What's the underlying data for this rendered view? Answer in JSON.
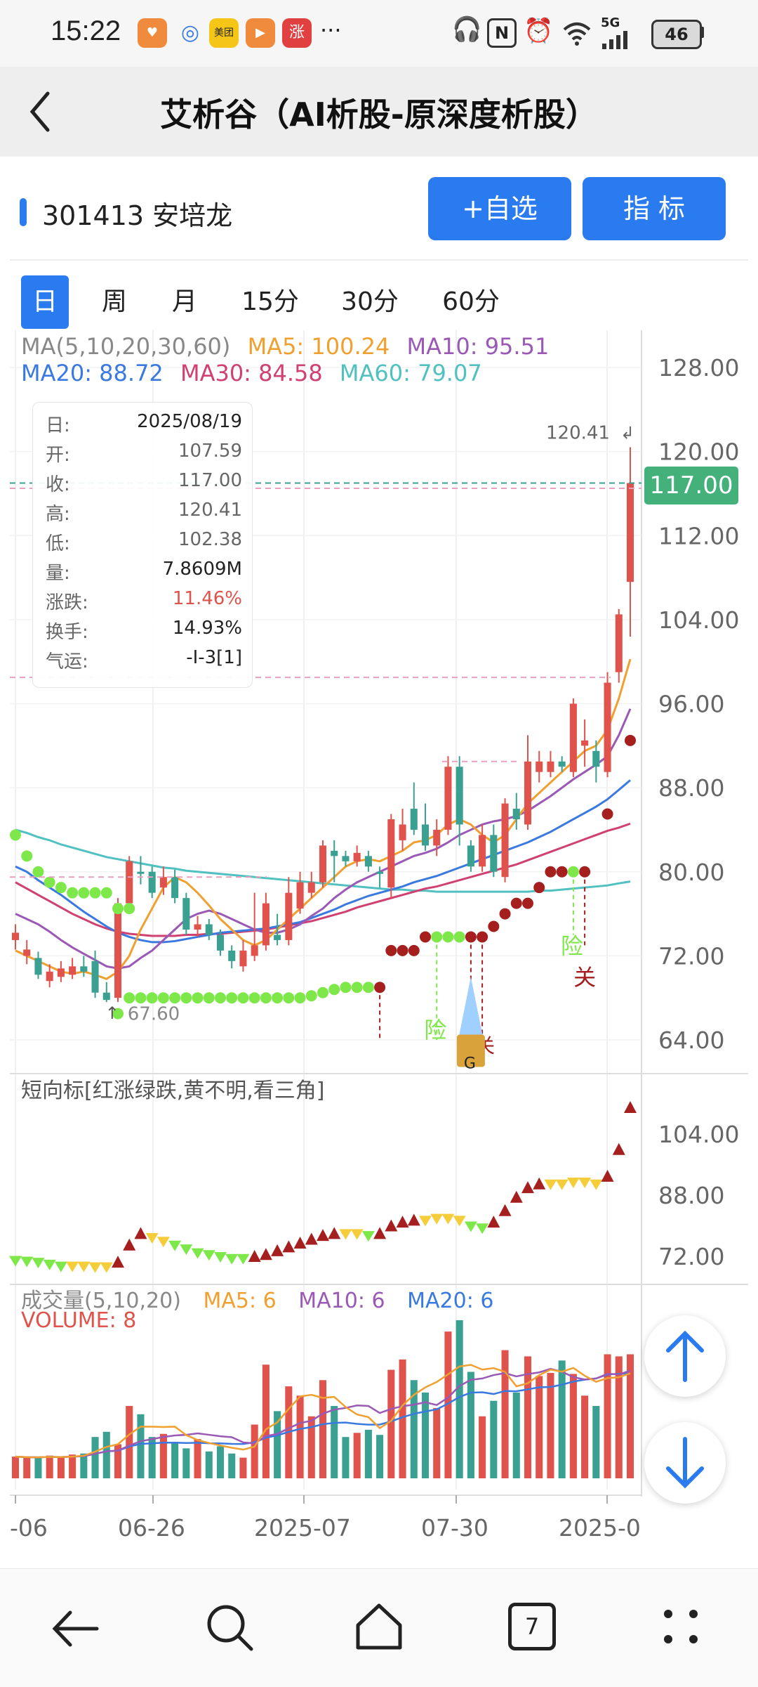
{
  "status_bar": {
    "time": "15:22",
    "dots": "···",
    "battery": "46",
    "network": "5G"
  },
  "header": {
    "title": "艾析谷（AI析股-原深度析股）"
  },
  "stock": {
    "code_name": "301413 安培龙",
    "add_label": "+自选",
    "indicator_label": "指  标"
  },
  "tabs": [
    {
      "label": "日",
      "active": true
    },
    {
      "label": "周",
      "active": false
    },
    {
      "label": "月",
      "active": false
    },
    {
      "label": "15分",
      "active": false
    },
    {
      "label": "30分",
      "active": false
    },
    {
      "label": "60分",
      "active": false
    }
  ],
  "ma_legend": {
    "title": "MA(5,10,20,30,60)",
    "ma5": "MA5: 100.24",
    "ma10": "MA10: 95.51",
    "ma20": "MA20: 88.72",
    "ma30": "MA30: 84.58",
    "ma60": "MA60: 79.07"
  },
  "tooltip": [
    {
      "label": "日:",
      "value": "2025/08/19"
    },
    {
      "label": "开:",
      "value": "107.59"
    },
    {
      "label": "收:",
      "value": "117.00"
    },
    {
      "label": "高:",
      "value": "120.41"
    },
    {
      "label": "低:",
      "value": "102.38"
    },
    {
      "label": "量:",
      "value": "7.8609M"
    },
    {
      "label": "涨跌:",
      "value": "11.46%"
    },
    {
      "label": "换手:",
      "value": "14.93%"
    },
    {
      "label": "气运:",
      "value": "-I-3[1]"
    }
  ],
  "price_axis": [
    "128.00",
    "120.00",
    "112.00",
    "104.00",
    "96.00",
    "88.00",
    "80.00",
    "72.00",
    "64.00"
  ],
  "current_price": "117.00",
  "high_marker": "120.41",
  "low_marker": "67.60",
  "signals": {
    "risk": "险",
    "close": "关",
    "g": "G"
  },
  "short_indicator": {
    "title": "短向标[红涨绿跌,黄不明,看三角]",
    "axis": [
      "104.00",
      "88.00",
      "72.00"
    ]
  },
  "volume": {
    "title": "成交量(5,10,20)",
    "ma5": "MA5: 6",
    "ma10": "MA10: 6",
    "ma20": "MA20: 6",
    "volume_label": "VOLUME: 8"
  },
  "x_axis": [
    "-06",
    "06-26",
    "2025-07",
    "07-30",
    "2025-0"
  ],
  "nav": {
    "tabs_count": "7"
  },
  "colors": {
    "up": "#e0534d",
    "down": "#3aa192",
    "accent": "#2a7af0",
    "ma5": "#f0a030",
    "ma10": "#9b59b6",
    "ma20": "#3a7ae0",
    "ma30": "#d04070",
    "ma60": "#50c0c0"
  },
  "chart_data": {
    "type": "candlestick",
    "y_range": [
      62,
      130
    ],
    "candles": [
      [
        73.5,
        74.2,
        72.6,
        75.0
      ],
      [
        72.0,
        72.6,
        71.2,
        73.5
      ],
      [
        71.8,
        70.2,
        69.8,
        72.4
      ],
      [
        69.6,
        70.5,
        69.0,
        71.2
      ],
      [
        70.0,
        70.8,
        69.5,
        71.5
      ],
      [
        70.2,
        71.0,
        69.8,
        71.8
      ],
      [
        71.0,
        70.5,
        70.0,
        72.0
      ],
      [
        71.5,
        68.5,
        68.0,
        72.5
      ],
      [
        68.5,
        67.8,
        67.6,
        69.5
      ],
      [
        68.0,
        77.0,
        67.6,
        77.5
      ],
      [
        77.0,
        81.0,
        76.5,
        81.5
      ],
      [
        80.0,
        79.8,
        78.8,
        81.5
      ],
      [
        80.0,
        78.0,
        77.5,
        80.5
      ],
      [
        78.5,
        79.5,
        77.8,
        80.5
      ],
      [
        79.5,
        77.5,
        77.0,
        80.2
      ],
      [
        77.5,
        74.5,
        74.0,
        78.0
      ],
      [
        74.5,
        75.0,
        73.8,
        75.8
      ],
      [
        75.0,
        74.0,
        73.5,
        75.5
      ],
      [
        74.0,
        72.5,
        72.0,
        74.5
      ],
      [
        72.5,
        71.5,
        70.8,
        73.0
      ],
      [
        71.0,
        72.5,
        70.5,
        73.5
      ],
      [
        72.0,
        73.0,
        71.5,
        78.0
      ],
      [
        73.0,
        77.0,
        72.5,
        78.0
      ],
      [
        74.0,
        73.5,
        73.0,
        76.0
      ],
      [
        73.5,
        78.0,
        73.0,
        79.5
      ],
      [
        76.5,
        79.0,
        76.0,
        80.0
      ],
      [
        78.0,
        79.0,
        77.5,
        80.0
      ],
      [
        79.0,
        82.5,
        78.5,
        83.0
      ],
      [
        82.0,
        81.5,
        79.0,
        83.0
      ],
      [
        81.5,
        81.0,
        80.5,
        82.0
      ],
      [
        81.0,
        81.8,
        80.5,
        82.5
      ],
      [
        81.5,
        80.5,
        80.0,
        82.0
      ],
      [
        80.0,
        79.8,
        78.5,
        80.5
      ],
      [
        78.5,
        85.0,
        77.5,
        85.5
      ],
      [
        83.0,
        84.5,
        82.0,
        86.0
      ],
      [
        86.0,
        84.0,
        83.5,
        88.5
      ],
      [
        84.5,
        82.5,
        82.0,
        86.5
      ],
      [
        82.5,
        84.0,
        81.5,
        85.0
      ],
      [
        84.0,
        90.0,
        83.5,
        91.0
      ],
      [
        90.0,
        84.5,
        82.5,
        91.0
      ],
      [
        82.5,
        80.5,
        80.0,
        83.0
      ],
      [
        80.5,
        83.5,
        80.0,
        84.5
      ],
      [
        83.5,
        80.0,
        79.5,
        84.5
      ],
      [
        79.5,
        86.5,
        79.0,
        87.0
      ],
      [
        86.0,
        85.0,
        84.0,
        87.5
      ],
      [
        84.5,
        90.5,
        84.0,
        93.0
      ],
      [
        89.5,
        90.5,
        88.5,
        91.5
      ],
      [
        89.5,
        90.5,
        89.0,
        91.5
      ],
      [
        90.5,
        90.0,
        89.5,
        91.0
      ],
      [
        89.5,
        96.0,
        89.0,
        96.5
      ],
      [
        92.0,
        92.5,
        90.0,
        94.5
      ],
      [
        91.5,
        90.0,
        88.5,
        92.5
      ],
      [
        89.5,
        98.0,
        89.0,
        99.0
      ],
      [
        99.0,
        104.5,
        98.0,
        105.0
      ],
      [
        107.59,
        117.0,
        102.38,
        120.41
      ]
    ],
    "volumes": [
      2.1,
      2.0,
      2.0,
      2.2,
      2.0,
      2.3,
      2.4,
      4.0,
      4.5,
      3.3,
      7.0,
      6.2,
      4.0,
      4.3,
      3.5,
      2.9,
      3.8,
      2.6,
      3.1,
      2.4,
      2.0,
      5.2,
      11.0,
      6.5,
      8.9,
      8.0,
      6.0,
      9.5,
      7.0,
      4.0,
      4.4,
      4.7,
      4.2,
      10.5,
      11.5,
      9.5,
      8.3,
      6.8,
      14.2,
      15.3,
      10.3,
      6.0,
      7.5,
      12.4,
      8.3,
      11.8,
      9.9,
      10.2,
      11.4,
      10.1,
      8.0,
      7.0,
      12.0,
      11.8,
      12.0
    ],
    "ma_lines": {
      "ma5": [
        72.5,
        72.0,
        71.5,
        71.0,
        70.5,
        70.3,
        70.5,
        70.2,
        69.8,
        70.5,
        72.0,
        74.5,
        76.5,
        78.5,
        79.5,
        79.0,
        78.0,
        76.8,
        75.5,
        74.5,
        73.5,
        73.0,
        73.5,
        74.5,
        75.5,
        76.5,
        77.5,
        78.5,
        79.5,
        80.5,
        81.0,
        81.2,
        81.0,
        81.5,
        82.0,
        82.8,
        83.0,
        83.5,
        84.5,
        85.0,
        84.5,
        83.5,
        82.8,
        83.5,
        85.0,
        86.5,
        87.5,
        88.5,
        89.5,
        90.5,
        91.5,
        92.0,
        93.5,
        96.5,
        100.24
      ],
      "ma10": [
        76.0,
        75.5,
        75.0,
        74.3,
        73.5,
        72.8,
        72.2,
        71.6,
        71.0,
        70.8,
        71.0,
        71.8,
        72.5,
        73.5,
        74.5,
        75.5,
        76.0,
        76.3,
        76.0,
        75.5,
        75.0,
        74.5,
        74.2,
        74.2,
        74.5,
        75.0,
        75.8,
        76.5,
        77.5,
        78.3,
        79.0,
        79.5,
        80.0,
        80.5,
        81.0,
        81.5,
        81.8,
        82.2,
        82.8,
        83.5,
        84.0,
        84.5,
        84.8,
        85.0,
        85.3,
        85.8,
        86.5,
        87.2,
        88.0,
        88.8,
        89.5,
        90.2,
        91.0,
        93.0,
        95.51
      ],
      "ma20": [
        80.5,
        80.0,
        79.2,
        78.5,
        77.8,
        77.0,
        76.2,
        75.5,
        74.8,
        74.2,
        73.8,
        73.5,
        73.3,
        73.3,
        73.4,
        73.6,
        73.8,
        74.0,
        74.2,
        74.3,
        74.4,
        74.5,
        74.6,
        74.8,
        75.0,
        75.2,
        75.6,
        76.0,
        76.4,
        76.9,
        77.3,
        77.7,
        78.0,
        78.3,
        78.6,
        79.0,
        79.3,
        79.6,
        80.0,
        80.4,
        80.8,
        81.2,
        81.6,
        82.0,
        82.4,
        82.8,
        83.3,
        83.8,
        84.4,
        85.0,
        85.6,
        86.2,
        86.9,
        87.8,
        88.72
      ],
      "ma30": [
        79.0,
        78.4,
        77.8,
        77.2,
        76.6,
        76.0,
        75.5,
        75.0,
        74.6,
        74.3,
        74.1,
        74.0,
        73.9,
        73.9,
        73.9,
        74.0,
        74.0,
        74.1,
        74.1,
        74.2,
        74.3,
        74.4,
        74.5,
        74.7,
        74.9,
        75.1,
        75.3,
        75.6,
        75.9,
        76.2,
        76.6,
        76.9,
        77.2,
        77.5,
        77.8,
        78.1,
        78.4,
        78.6,
        78.9,
        79.2,
        79.5,
        79.8,
        80.1,
        80.4,
        80.7,
        81.1,
        81.5,
        81.9,
        82.3,
        82.7,
        83.1,
        83.5,
        83.9,
        84.2,
        84.58
      ],
      "ma60": [
        84.0,
        83.7,
        83.3,
        83.0,
        82.6,
        82.3,
        82.0,
        81.7,
        81.4,
        81.2,
        81.0,
        80.8,
        80.6,
        80.4,
        80.3,
        80.1,
        80.0,
        79.9,
        79.8,
        79.7,
        79.6,
        79.5,
        79.4,
        79.3,
        79.2,
        79.1,
        79.0,
        78.9,
        78.8,
        78.7,
        78.6,
        78.5,
        78.4,
        78.3,
        78.3,
        78.2,
        78.2,
        78.1,
        78.1,
        78.1,
        78.1,
        78.1,
        78.1,
        78.1,
        78.1,
        78.1,
        78.2,
        78.2,
        78.3,
        78.4,
        78.5,
        78.6,
        78.7,
        78.9,
        79.07
      ]
    },
    "short_indicator_series": [
      {
        "v": 71.0,
        "c": "green"
      },
      {
        "v": 70.8,
        "c": "green"
      },
      {
        "v": 70.5,
        "c": "green"
      },
      {
        "v": 70.0,
        "c": "green"
      },
      {
        "v": 69.5,
        "c": "green"
      },
      {
        "v": 69.5,
        "c": "yellow"
      },
      {
        "v": 69.5,
        "c": "yellow"
      },
      {
        "v": 69.3,
        "c": "yellow"
      },
      {
        "v": 69.3,
        "c": "yellow"
      },
      {
        "v": 70.5,
        "c": "red"
      },
      {
        "v": 75.0,
        "c": "red"
      },
      {
        "v": 78.0,
        "c": "red"
      },
      {
        "v": 77.0,
        "c": "yellow"
      },
      {
        "v": 76.0,
        "c": "yellow"
      },
      {
        "v": 75.0,
        "c": "green"
      },
      {
        "v": 74.0,
        "c": "green"
      },
      {
        "v": 73.0,
        "c": "green"
      },
      {
        "v": 72.5,
        "c": "green"
      },
      {
        "v": 72.0,
        "c": "green"
      },
      {
        "v": 71.5,
        "c": "green"
      },
      {
        "v": 71.5,
        "c": "green"
      },
      {
        "v": 72.0,
        "c": "red"
      },
      {
        "v": 72.5,
        "c": "red"
      },
      {
        "v": 73.5,
        "c": "red"
      },
      {
        "v": 74.5,
        "c": "red"
      },
      {
        "v": 75.5,
        "c": "red"
      },
      {
        "v": 76.5,
        "c": "red"
      },
      {
        "v": 77.5,
        "c": "red"
      },
      {
        "v": 78.0,
        "c": "red"
      },
      {
        "v": 78.0,
        "c": "yellow"
      },
      {
        "v": 78.0,
        "c": "yellow"
      },
      {
        "v": 77.5,
        "c": "green"
      },
      {
        "v": 78.0,
        "c": "red"
      },
      {
        "v": 80.0,
        "c": "red"
      },
      {
        "v": 81.0,
        "c": "red"
      },
      {
        "v": 81.5,
        "c": "red"
      },
      {
        "v": 81.5,
        "c": "yellow"
      },
      {
        "v": 82.0,
        "c": "yellow"
      },
      {
        "v": 82.0,
        "c": "yellow"
      },
      {
        "v": 81.5,
        "c": "yellow"
      },
      {
        "v": 80.0,
        "c": "green"
      },
      {
        "v": 79.5,
        "c": "green"
      },
      {
        "v": 81.0,
        "c": "red"
      },
      {
        "v": 84.0,
        "c": "red"
      },
      {
        "v": 87.5,
        "c": "red"
      },
      {
        "v": 90.0,
        "c": "red"
      },
      {
        "v": 91.0,
        "c": "red"
      },
      {
        "v": 91.0,
        "c": "yellow"
      },
      {
        "v": 91.0,
        "c": "yellow"
      },
      {
        "v": 91.5,
        "c": "yellow"
      },
      {
        "v": 91.5,
        "c": "yellow"
      },
      {
        "v": 91.0,
        "c": "yellow"
      },
      {
        "v": 93.0,
        "c": "red"
      },
      {
        "v": 100.0,
        "c": "red"
      },
      {
        "v": 111.0,
        "c": "red"
      }
    ],
    "signal_dots": [
      {
        "i": 0,
        "v": 83.5,
        "c": "green"
      },
      {
        "i": 1,
        "v": 81.5,
        "c": "green"
      },
      {
        "i": 2,
        "v": 80.0,
        "c": "green"
      },
      {
        "i": 3,
        "v": 79.0,
        "c": "green"
      },
      {
        "i": 4,
        "v": 78.5,
        "c": "green"
      },
      {
        "i": 5,
        "v": 78.0,
        "c": "green"
      },
      {
        "i": 6,
        "v": 78.0,
        "c": "green"
      },
      {
        "i": 7,
        "v": 78.0,
        "c": "green"
      },
      {
        "i": 8,
        "v": 78.0,
        "c": "green"
      },
      {
        "i": 9,
        "v": 76.5,
        "c": "green"
      },
      {
        "i": 10,
        "v": 76.5,
        "c": "green"
      },
      {
        "i": 9,
        "v": 66.5,
        "c": "green"
      },
      {
        "i": 10,
        "v": 68.0,
        "c": "green"
      },
      {
        "i": 11,
        "v": 68.0,
        "c": "green"
      },
      {
        "i": 12,
        "v": 68.0,
        "c": "green"
      },
      {
        "i": 13,
        "v": 68.0,
        "c": "green"
      },
      {
        "i": 14,
        "v": 68.0,
        "c": "green"
      },
      {
        "i": 15,
        "v": 68.0,
        "c": "green"
      },
      {
        "i": 16,
        "v": 68.0,
        "c": "green"
      },
      {
        "i": 17,
        "v": 68.0,
        "c": "green"
      },
      {
        "i": 18,
        "v": 68.0,
        "c": "green"
      },
      {
        "i": 19,
        "v": 68.0,
        "c": "green"
      },
      {
        "i": 20,
        "v": 68.0,
        "c": "green"
      },
      {
        "i": 21,
        "v": 68.0,
        "c": "green"
      },
      {
        "i": 22,
        "v": 68.0,
        "c": "green"
      },
      {
        "i": 23,
        "v": 68.0,
        "c": "green"
      },
      {
        "i": 24,
        "v": 68.0,
        "c": "green"
      },
      {
        "i": 25,
        "v": 68.0,
        "c": "green"
      },
      {
        "i": 26,
        "v": 68.2,
        "c": "green"
      },
      {
        "i": 27,
        "v": 68.5,
        "c": "green"
      },
      {
        "i": 28,
        "v": 68.8,
        "c": "green"
      },
      {
        "i": 29,
        "v": 69.0,
        "c": "green"
      },
      {
        "i": 30,
        "v": 69.0,
        "c": "green"
      },
      {
        "i": 31,
        "v": 69.0,
        "c": "green"
      },
      {
        "i": 32,
        "v": 69.0,
        "c": "darkred"
      },
      {
        "i": 33,
        "v": 72.5,
        "c": "darkred"
      },
      {
        "i": 34,
        "v": 72.5,
        "c": "darkred"
      },
      {
        "i": 35,
        "v": 72.5,
        "c": "darkred"
      },
      {
        "i": 36,
        "v": 73.8,
        "c": "darkred"
      },
      {
        "i": 37,
        "v": 73.8,
        "c": "green"
      },
      {
        "i": 38,
        "v": 73.8,
        "c": "green"
      },
      {
        "i": 39,
        "v": 73.8,
        "c": "green"
      },
      {
        "i": 40,
        "v": 73.8,
        "c": "darkred"
      },
      {
        "i": 41,
        "v": 73.8,
        "c": "darkred"
      },
      {
        "i": 42,
        "v": 74.8,
        "c": "darkred"
      },
      {
        "i": 43,
        "v": 76.0,
        "c": "darkred"
      },
      {
        "i": 44,
        "v": 77.0,
        "c": "darkred"
      },
      {
        "i": 45,
        "v": 77.0,
        "c": "darkred"
      },
      {
        "i": 46,
        "v": 78.5,
        "c": "darkred"
      },
      {
        "i": 47,
        "v": 80.0,
        "c": "darkred"
      },
      {
        "i": 48,
        "v": 80.0,
        "c": "darkred"
      },
      {
        "i": 49,
        "v": 80.0,
        "c": "green"
      },
      {
        "i": 50,
        "v": 80.0,
        "c": "darkred"
      },
      {
        "i": 52,
        "v": 85.5,
        "c": "darkred"
      },
      {
        "i": 54,
        "v": 92.5,
        "c": "darkred"
      }
    ]
  }
}
